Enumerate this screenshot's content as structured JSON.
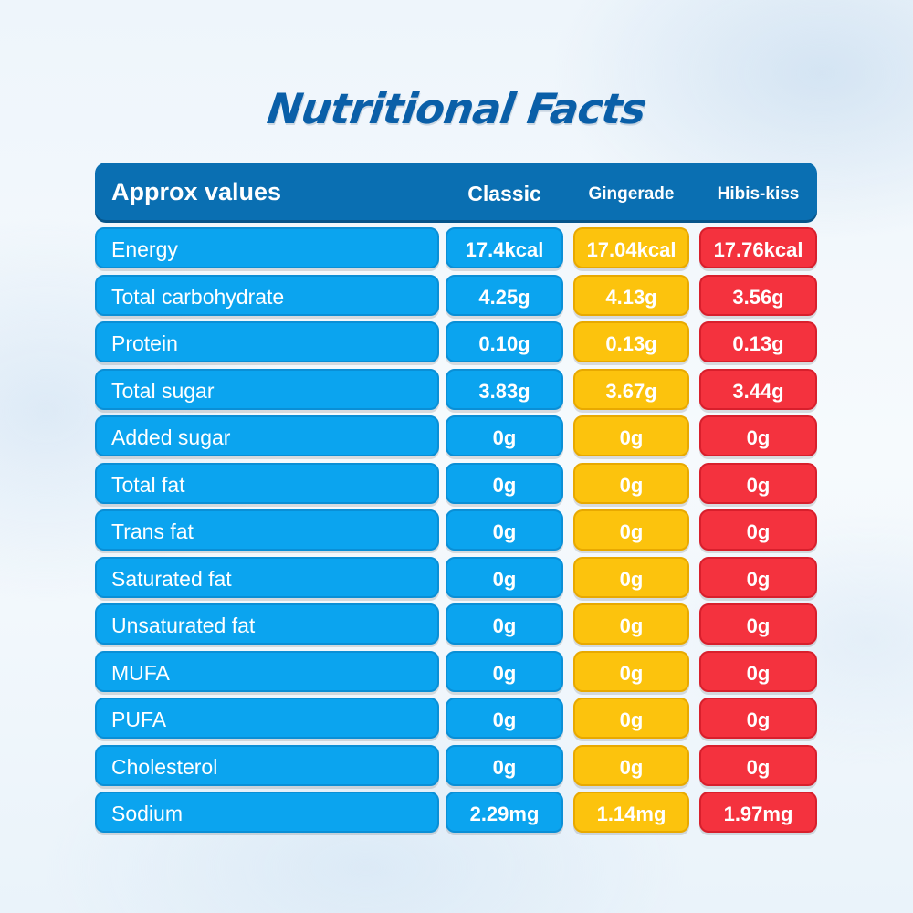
{
  "title": "Nutritional Facts",
  "header": {
    "label": "Approx values",
    "columns": [
      "Classic",
      "Gingerade",
      "Hibis-kiss"
    ]
  },
  "colors": {
    "header": "#0a6fb2",
    "classic": "#0ba4ef",
    "gingerade": "#fcc30d",
    "hibis_kiss": "#f4323e",
    "title": "#0a5fa8"
  },
  "rows": [
    {
      "label": "Energy",
      "values": [
        "17.4kcal",
        "17.04kcal",
        "17.76kcal"
      ]
    },
    {
      "label": "Total carbohydrate",
      "values": [
        "4.25g",
        "4.13g",
        "3.56g"
      ]
    },
    {
      "label": "Protein",
      "values": [
        "0.10g",
        "0.13g",
        "0.13g"
      ]
    },
    {
      "label": "Total sugar",
      "values": [
        "3.83g",
        "3.67g",
        "3.44g"
      ]
    },
    {
      "label": "Added sugar",
      "values": [
        "0g",
        "0g",
        "0g"
      ]
    },
    {
      "label": "Total fat",
      "values": [
        "0g",
        "0g",
        "0g"
      ]
    },
    {
      "label": "Trans fat",
      "values": [
        "0g",
        "0g",
        "0g"
      ]
    },
    {
      "label": "Saturated fat",
      "values": [
        "0g",
        "0g",
        "0g"
      ]
    },
    {
      "label": "Unsaturated fat",
      "values": [
        "0g",
        "0g",
        "0g"
      ]
    },
    {
      "label": "MUFA",
      "values": [
        "0g",
        "0g",
        "0g"
      ]
    },
    {
      "label": "PUFA",
      "values": [
        "0g",
        "0g",
        "0g"
      ]
    },
    {
      "label": "Cholesterol",
      "values": [
        "0g",
        "0g",
        "0g"
      ]
    },
    {
      "label": "Sodium",
      "values": [
        "2.29mg",
        "1.14mg",
        "1.97mg"
      ]
    }
  ]
}
